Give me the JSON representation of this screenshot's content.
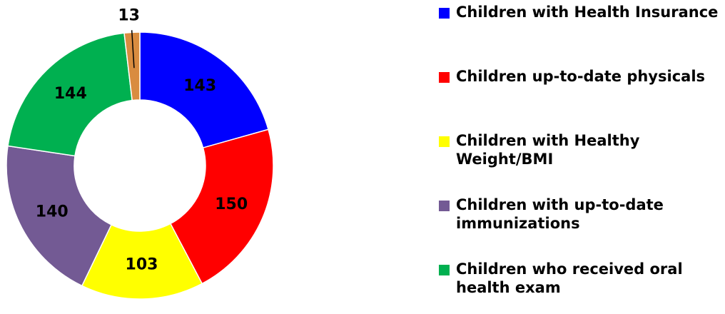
{
  "chart_data": {
    "type": "donut",
    "categories": [
      "Children with Health Insurance",
      "Children up-to-date physicals",
      "Children with Healthy Weight/BMI",
      "Children with up-to-date immunizations",
      "Children who received oral health exam",
      null
    ],
    "values": [
      143,
      150,
      103,
      140,
      144,
      13
    ],
    "colors": [
      "#0000ff",
      "#ff0000",
      "#ffff00",
      "#735a94",
      "#00b050",
      "#d98c40"
    ],
    "legend": "right"
  }
}
